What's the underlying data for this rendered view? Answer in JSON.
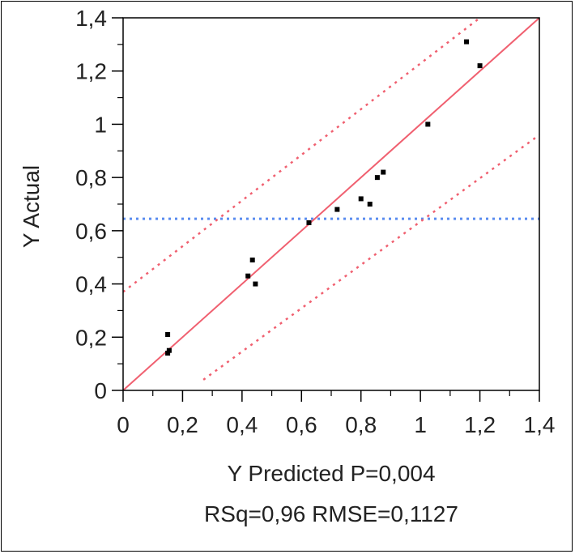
{
  "chart_data": {
    "type": "scatter",
    "xlabel": "Y Predicted P=0,004",
    "subtitle": "RSq=0,96 RMSE=0,1127",
    "ylabel": "Y Actual",
    "xlim": [
      0,
      1.4
    ],
    "ylim": [
      0,
      1.4
    ],
    "x_ticks": [
      "0",
      "0,2",
      "0,4",
      "0,6",
      "0,8",
      "1",
      "1,2",
      "1,4"
    ],
    "y_ticks": [
      "0",
      "0,2",
      "0,4",
      "0,6",
      "0,8",
      "1",
      "1,2",
      "1,4"
    ],
    "x_tick_values": [
      0,
      0.2,
      0.4,
      0.6,
      0.8,
      1.0,
      1.2,
      1.4
    ],
    "y_tick_values": [
      0,
      0.2,
      0.4,
      0.6,
      0.8,
      1.0,
      1.2,
      1.4
    ],
    "points": [
      {
        "x": 0.15,
        "y": 0.21
      },
      {
        "x": 0.155,
        "y": 0.15
      },
      {
        "x": 0.15,
        "y": 0.14
      },
      {
        "x": 0.42,
        "y": 0.43
      },
      {
        "x": 0.435,
        "y": 0.49
      },
      {
        "x": 0.445,
        "y": 0.4
      },
      {
        "x": 0.625,
        "y": 0.63
      },
      {
        "x": 0.72,
        "y": 0.68
      },
      {
        "x": 0.8,
        "y": 0.72
      },
      {
        "x": 0.83,
        "y": 0.7
      },
      {
        "x": 0.855,
        "y": 0.8
      },
      {
        "x": 0.875,
        "y": 0.82
      },
      {
        "x": 1.025,
        "y": 1.0
      },
      {
        "x": 1.155,
        "y": 1.31
      },
      {
        "x": 1.2,
        "y": 1.22
      }
    ],
    "fit_line": {
      "x": [
        0.0,
        1.4
      ],
      "y": [
        0.0,
        1.4
      ]
    },
    "confidence_upper": {
      "x": [
        0.0,
        1.2
      ],
      "y": [
        0.37,
        1.4
      ]
    },
    "confidence_lower": {
      "x": [
        0.27,
        1.4
      ],
      "y": [
        0.04,
        0.96
      ]
    },
    "mean_line_y": 0.645,
    "grid": false,
    "colors": {
      "fit": "#f06070",
      "confidence": "#f06070",
      "mean": "#5a8cf0",
      "points": "#000000"
    }
  }
}
